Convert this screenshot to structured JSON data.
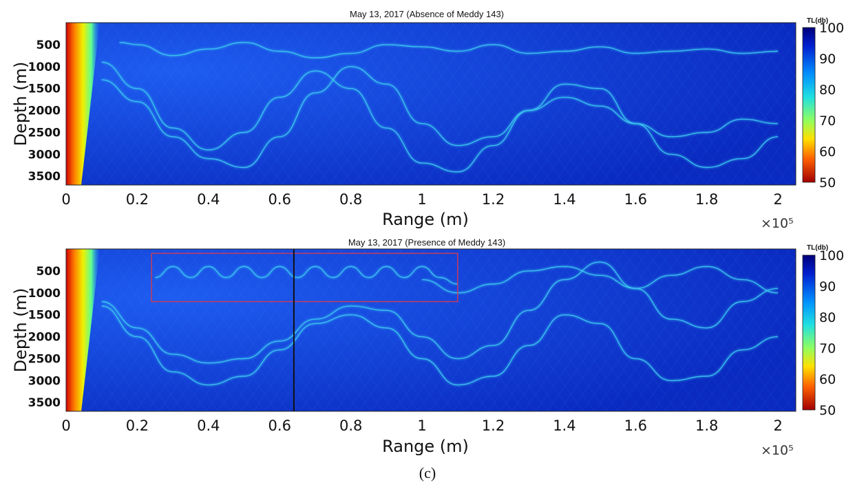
{
  "caption": "(c)",
  "colors": {
    "deep_blue": "#0a28c8",
    "mid_blue": "#1440e6",
    "ray_cyan": "#3cc8f0",
    "marker_box": "#c83c5a",
    "marker_line": "#111111"
  },
  "chart_data": [
    {
      "type": "heatmap",
      "title": "May 13, 2017  (Absence of Meddy 143)",
      "xlabel": "Range (m)",
      "ylabel": "Depth (m)",
      "x_multiplier": "×10⁵",
      "xlim": [
        0,
        2.05
      ],
      "ylim": [
        0,
        3700
      ],
      "x_ticks": [
        "0",
        "0.2",
        "0.4",
        "0.6",
        "0.8",
        "1",
        "1.2",
        "1.4",
        "1.6",
        "1.8",
        "2"
      ],
      "y_ticks": [
        "500",
        "1000",
        "1500",
        "2000",
        "2500",
        "3000",
        "3500"
      ],
      "colorbar": {
        "label": "TL(db)",
        "min": 50,
        "max": 100,
        "ticks": [
          "100",
          "90",
          "80",
          "70",
          "60",
          "50"
        ],
        "colormap": "jet reversed"
      },
      "ray_paths": [
        {
          "x": [
            0.15,
            0.2,
            0.3,
            0.4,
            0.5,
            0.6,
            0.7,
            0.8,
            0.9,
            1.0,
            1.1,
            1.2,
            1.3,
            1.4,
            1.5,
            1.6,
            1.7,
            1.8,
            1.9,
            2.0
          ],
          "depth": [
            450,
            500,
            750,
            600,
            450,
            650,
            800,
            700,
            500,
            550,
            650,
            500,
            700,
            650,
            550,
            700,
            650,
            600,
            700,
            650
          ]
        },
        {
          "x": [
            0.1,
            0.2,
            0.3,
            0.4,
            0.5,
            0.6,
            0.7,
            0.8,
            0.9,
            1.0,
            1.1,
            1.2,
            1.3,
            1.4,
            1.5,
            1.6,
            1.7,
            1.8,
            1.9,
            2.0
          ],
          "depth": [
            1300,
            1800,
            2600,
            3100,
            3300,
            2600,
            1600,
            1000,
            1400,
            2300,
            2800,
            2600,
            2000,
            1700,
            1900,
            2300,
            2600,
            2500,
            2200,
            2300
          ]
        },
        {
          "x": [
            0.1,
            0.2,
            0.3,
            0.4,
            0.5,
            0.6,
            0.7,
            0.8,
            0.9,
            1.0,
            1.1,
            1.2,
            1.3,
            1.4,
            1.5,
            1.6,
            1.7,
            1.8,
            1.9,
            2.0
          ],
          "depth": [
            900,
            1500,
            2400,
            2900,
            2500,
            1700,
            1100,
            1500,
            2400,
            3200,
            3400,
            2800,
            2000,
            1400,
            1500,
            2300,
            3000,
            3300,
            3100,
            2600
          ]
        }
      ]
    },
    {
      "type": "heatmap",
      "title": "May 13, 2017  (Presence of Meddy 143)",
      "xlabel": "Range (m)",
      "ylabel": "Depth (m)",
      "x_multiplier": "×10⁵",
      "xlim": [
        0,
        2.05
      ],
      "ylim": [
        0,
        3700
      ],
      "x_ticks": [
        "0",
        "0.2",
        "0.4",
        "0.6",
        "0.8",
        "1",
        "1.2",
        "1.4",
        "1.6",
        "1.8",
        "2"
      ],
      "y_ticks": [
        "500",
        "1000",
        "1500",
        "2000",
        "2500",
        "3000",
        "3500"
      ],
      "colorbar": {
        "label": "TL(db)",
        "min": 50,
        "max": 100,
        "ticks": [
          "100",
          "90",
          "80",
          "70",
          "60",
          "50"
        ],
        "colormap": "jet reversed"
      },
      "highlight_box": {
        "x": [
          0.24,
          1.1
        ],
        "depth": [
          100,
          1200
        ]
      },
      "vertical_line_x": 0.64,
      "ray_paths": [
        {
          "x": [
            0.25,
            0.3,
            0.35,
            0.4,
            0.45,
            0.5,
            0.55,
            0.6,
            0.65,
            0.7,
            0.75,
            0.8,
            0.85,
            0.9,
            0.95,
            1.0,
            1.05,
            1.1
          ],
          "depth": [
            650,
            400,
            650,
            400,
            650,
            400,
            650,
            400,
            650,
            400,
            650,
            400,
            650,
            400,
            650,
            400,
            650,
            800
          ]
        },
        {
          "x": [
            0.1,
            0.2,
            0.3,
            0.4,
            0.5,
            0.6,
            0.7,
            0.8,
            0.9,
            1.0,
            1.1,
            1.2,
            1.3,
            1.4,
            1.5,
            1.6,
            1.7,
            1.8,
            1.9,
            2.0
          ],
          "depth": [
            1300,
            2000,
            2800,
            3100,
            2900,
            2300,
            1700,
            1500,
            1800,
            2500,
            3100,
            2900,
            2200,
            1500,
            1700,
            2500,
            3000,
            2900,
            2300,
            2000
          ]
        },
        {
          "x": [
            0.1,
            0.2,
            0.3,
            0.4,
            0.5,
            0.6,
            0.7,
            0.8,
            0.9,
            1.0,
            1.1,
            1.2,
            1.3,
            1.4,
            1.5,
            1.6,
            1.7,
            1.8,
            1.9,
            2.0
          ],
          "depth": [
            1200,
            1800,
            2400,
            2600,
            2500,
            2100,
            1600,
            1300,
            1400,
            2000,
            2500,
            2200,
            1400,
            700,
            300,
            900,
            1600,
            1800,
            1200,
            900
          ]
        },
        {
          "x": [
            1.0,
            1.1,
            1.2,
            1.3,
            1.4,
            1.5,
            1.6,
            1.7,
            1.8,
            1.9,
            2.0
          ],
          "depth": [
            700,
            1000,
            800,
            500,
            400,
            600,
            900,
            600,
            400,
            700,
            1000
          ]
        }
      ]
    }
  ]
}
